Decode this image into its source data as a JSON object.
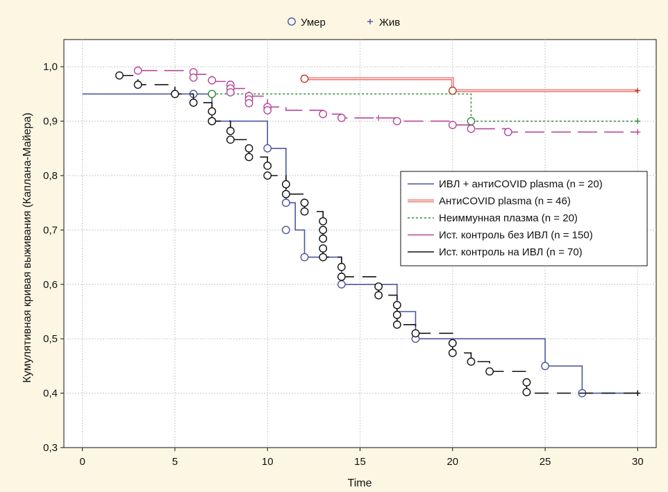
{
  "chart_data": {
    "type": "line",
    "subtype": "kaplan-meier",
    "xlabel": "Time",
    "ylabel": "Кумулятивная кривая выживания (Каплана-Майера)",
    "xlim": [
      -1,
      31
    ],
    "ylim": [
      0.3,
      1.05
    ],
    "xticks": [
      0,
      5,
      10,
      15,
      20,
      25,
      30
    ],
    "yticks": [
      0.3,
      0.4,
      0.5,
      0.6,
      0.7,
      0.8,
      0.9,
      1.0
    ],
    "ytick_labels": [
      "0,3",
      "0,4",
      "0,5",
      "0,6",
      "0,7",
      "0,8",
      "0,9",
      "1,0"
    ],
    "grid": true,
    "background": "#fdf6e3",
    "marker_legend": [
      {
        "label": "Умер",
        "marker": "circle",
        "color": "#4a55a2"
      },
      {
        "label": "Жив",
        "marker": "plus",
        "color": "#4a55a2"
      }
    ],
    "series": [
      {
        "name": "ИВЛ + антиCOVID plasma (n = 20)",
        "color": "#4a55a2",
        "dash": "solid",
        "width": 1.6,
        "steps": [
          [
            0,
            0.95
          ],
          [
            7,
            0.9
          ],
          [
            10,
            0.85
          ],
          [
            11,
            0.75
          ],
          [
            11.5,
            0.7
          ],
          [
            12,
            0.65
          ],
          [
            14,
            0.6
          ],
          [
            17,
            0.55
          ],
          [
            18,
            0.5
          ],
          [
            25,
            0.45
          ],
          [
            27,
            0.4
          ],
          [
            30,
            0.4
          ]
        ],
        "events": [
          [
            6,
            0.95
          ],
          [
            7,
            0.9
          ],
          [
            10,
            0.85
          ],
          [
            11,
            0.75
          ],
          [
            11,
            0.7
          ],
          [
            12,
            0.65
          ],
          [
            14,
            0.6
          ],
          [
            18,
            0.5
          ],
          [
            25,
            0.45
          ],
          [
            27,
            0.4
          ]
        ],
        "censored": [
          [
            30,
            0.4
          ]
        ]
      },
      {
        "name": "АнтиCOVID plasma (n = 46)",
        "color": "#e8706a",
        "dash": "double",
        "width": 1.8,
        "steps": [
          [
            12,
            0.978
          ],
          [
            20,
            0.956
          ],
          [
            30,
            0.956
          ]
        ],
        "events": [
          [
            12,
            0.978
          ],
          [
            20,
            0.956
          ]
        ],
        "event_color": "#c0392b",
        "censored": [
          [
            30,
            0.956
          ]
        ]
      },
      {
        "name": "Неиммунная плазма (n = 20)",
        "color": "#2e8b3a",
        "dash": "dotted",
        "width": 1.5,
        "steps": [
          [
            7,
            0.95
          ],
          [
            21,
            0.9
          ],
          [
            30,
            0.9
          ]
        ],
        "events": [
          [
            7,
            0.95
          ],
          [
            21,
            0.9
          ]
        ],
        "censored": [
          [
            30,
            0.9
          ]
        ]
      },
      {
        "name": "Ист. контроль без ИВЛ (n = 150)",
        "color": "#b5479a",
        "dash": "longdash",
        "width": 1.6,
        "steps": [
          [
            3,
            0.993
          ],
          [
            6,
            0.986
          ],
          [
            7,
            0.973
          ],
          [
            8,
            0.96
          ],
          [
            9,
            0.946
          ],
          [
            10,
            0.926
          ],
          [
            11,
            0.92
          ],
          [
            13,
            0.913
          ],
          [
            14,
            0.906
          ],
          [
            17,
            0.9
          ],
          [
            20,
            0.893
          ],
          [
            21,
            0.886
          ],
          [
            23,
            0.88
          ],
          [
            30,
            0.88
          ]
        ],
        "events": [
          [
            3,
            0.993
          ],
          [
            6,
            0.99
          ],
          [
            6,
            0.98
          ],
          [
            7,
            0.975
          ],
          [
            8,
            0.967
          ],
          [
            8,
            0.96
          ],
          [
            8,
            0.953
          ],
          [
            9,
            0.946
          ],
          [
            9,
            0.94
          ],
          [
            9,
            0.933
          ],
          [
            10,
            0.926
          ],
          [
            10,
            0.92
          ],
          [
            13,
            0.913
          ],
          [
            14,
            0.906
          ],
          [
            17,
            0.9
          ],
          [
            20,
            0.893
          ],
          [
            21,
            0.886
          ],
          [
            23,
            0.88
          ]
        ],
        "censored": [
          [
            16,
            0.906
          ],
          [
            30,
            0.88
          ]
        ]
      },
      {
        "name": "Ист. контроль на ИВЛ (n = 70)",
        "color": "#111111",
        "dash": "dashed",
        "width": 1.6,
        "steps": [
          [
            2,
            0.984
          ],
          [
            3,
            0.967
          ],
          [
            5,
            0.95
          ],
          [
            6,
            0.934
          ],
          [
            7,
            0.9
          ],
          [
            8,
            0.866
          ],
          [
            9,
            0.834
          ],
          [
            10,
            0.8
          ],
          [
            11,
            0.766
          ],
          [
            12,
            0.734
          ],
          [
            13,
            0.65
          ],
          [
            14,
            0.614
          ],
          [
            16,
            0.58
          ],
          [
            17,
            0.526
          ],
          [
            18,
            0.51
          ],
          [
            20,
            0.474
          ],
          [
            21,
            0.458
          ],
          [
            22,
            0.44
          ],
          [
            24,
            0.4
          ],
          [
            30,
            0.4
          ]
        ],
        "events": [
          [
            2,
            0.984
          ],
          [
            3,
            0.967
          ],
          [
            5,
            0.95
          ],
          [
            6,
            0.934
          ],
          [
            7,
            0.918
          ],
          [
            7,
            0.9
          ],
          [
            8,
            0.882
          ],
          [
            8,
            0.866
          ],
          [
            9,
            0.85
          ],
          [
            9,
            0.834
          ],
          [
            10,
            0.818
          ],
          [
            10,
            0.8
          ],
          [
            11,
            0.784
          ],
          [
            11,
            0.766
          ],
          [
            12,
            0.75
          ],
          [
            12,
            0.734
          ],
          [
            13,
            0.716
          ],
          [
            13,
            0.7
          ],
          [
            13,
            0.684
          ],
          [
            13,
            0.666
          ],
          [
            13,
            0.65
          ],
          [
            14,
            0.632
          ],
          [
            14,
            0.614
          ],
          [
            16,
            0.596
          ],
          [
            16,
            0.58
          ],
          [
            17,
            0.562
          ],
          [
            17,
            0.544
          ],
          [
            17,
            0.526
          ],
          [
            18,
            0.51
          ],
          [
            20,
            0.492
          ],
          [
            20,
            0.474
          ],
          [
            21,
            0.458
          ],
          [
            22,
            0.44
          ],
          [
            24,
            0.42
          ],
          [
            24,
            0.402
          ]
        ],
        "censored": [
          [
            30,
            0.4
          ]
        ]
      }
    ]
  }
}
